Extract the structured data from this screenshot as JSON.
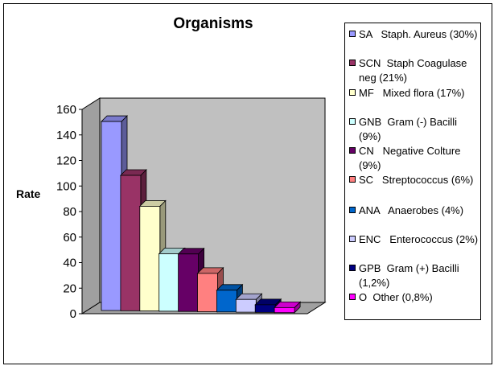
{
  "chart_data": {
    "type": "bar",
    "title": "Organisms",
    "xlabel": "",
    "ylabel": "Rate",
    "ylim": [
      0,
      160
    ],
    "yticks": [
      0,
      20,
      40,
      60,
      80,
      100,
      120,
      140,
      160
    ],
    "three_d": true,
    "grid": false,
    "legend_position": "right",
    "categories": [
      "SA",
      "SCN",
      "MF",
      "GNB",
      "CN",
      "SC",
      "ANA",
      "ENC",
      "GPB",
      "O"
    ],
    "values": [
      148,
      106,
      82,
      45,
      45,
      30,
      17,
      10,
      6,
      4
    ],
    "legend": [
      {
        "label": "SA   Staph. Aureus (30%)",
        "color": "#9999ff"
      },
      {
        "label": "SCN  Staph Coagulase neg (21%)",
        "color": "#993366"
      },
      {
        "label": "MF   Mixed flora (17%)",
        "color": "#ffffcc"
      },
      {
        "label": "GNB  Gram (-) Bacilli (9%)",
        "color": "#ccffff"
      },
      {
        "label": "CN   Negative Colture (9%)",
        "color": "#660066"
      },
      {
        "label": "SC   Streptococcus (6%)",
        "color": "#ff8080"
      },
      {
        "label": "ANA   Anaerobes (4%)",
        "color": "#0066cc"
      },
      {
        "label": "ENC   Enterococcus (2%)",
        "color": "#ccccff"
      },
      {
        "label": "GPB  Gram (+) Bacilli (1,2%)",
        "color": "#000080"
      },
      {
        "label": "O  Other (0,8%)",
        "color": "#ff00ff"
      }
    ],
    "colors": {
      "wall": "#c0c0c0",
      "floor": "#a0a0a0"
    }
  }
}
